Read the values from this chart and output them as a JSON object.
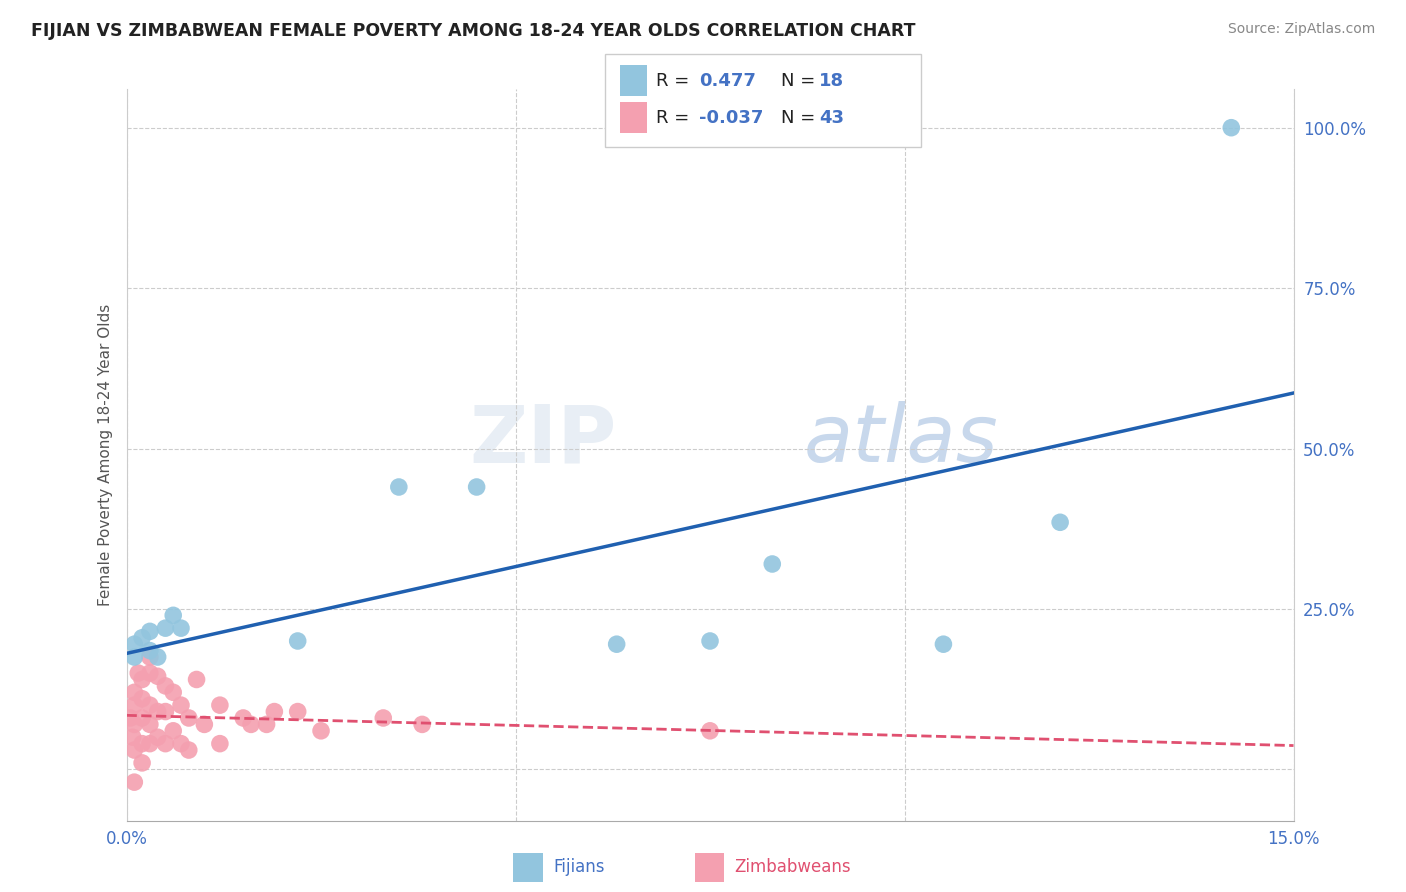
{
  "title": "FIJIAN VS ZIMBABWEAN FEMALE POVERTY AMONG 18-24 YEAR OLDS CORRELATION CHART",
  "source": "Source: ZipAtlas.com",
  "ylabel": "Female Poverty Among 18-24 Year Olds",
  "xmin": 0.0,
  "xmax": 0.15,
  "ymin": -0.08,
  "ymax": 1.06,
  "fijian_color": "#92C5DE",
  "zimbabwean_color": "#F4A0B0",
  "fijian_line_color": "#2060B0",
  "zimbabwean_line_color": "#E05070",
  "R_fijian": 0.477,
  "N_fijian": 18,
  "R_zimbabwean": -0.037,
  "N_zimbabwean": 43,
  "fijian_scatter_x": [
    0.001,
    0.001,
    0.002,
    0.003,
    0.003,
    0.004,
    0.005,
    0.006,
    0.007,
    0.022,
    0.035,
    0.045,
    0.063,
    0.075,
    0.083,
    0.105,
    0.12,
    0.142
  ],
  "fijian_scatter_y": [
    0.175,
    0.195,
    0.205,
    0.185,
    0.215,
    0.175,
    0.22,
    0.24,
    0.22,
    0.2,
    0.44,
    0.44,
    0.195,
    0.2,
    0.32,
    0.195,
    0.385,
    1.0
  ],
  "zimbabwean_scatter_x": [
    0.0005,
    0.0008,
    0.001,
    0.001,
    0.001,
    0.001,
    0.001,
    0.0015,
    0.002,
    0.002,
    0.002,
    0.002,
    0.002,
    0.003,
    0.003,
    0.003,
    0.003,
    0.003,
    0.004,
    0.004,
    0.004,
    0.005,
    0.005,
    0.005,
    0.006,
    0.006,
    0.007,
    0.007,
    0.008,
    0.008,
    0.009,
    0.01,
    0.012,
    0.012,
    0.015,
    0.016,
    0.018,
    0.019,
    0.022,
    0.025,
    0.033,
    0.038,
    0.075
  ],
  "zimbabwean_scatter_y": [
    0.08,
    0.05,
    0.12,
    0.1,
    0.07,
    0.03,
    -0.02,
    0.15,
    0.14,
    0.11,
    0.08,
    0.04,
    0.01,
    0.175,
    0.15,
    0.1,
    0.07,
    0.04,
    0.145,
    0.09,
    0.05,
    0.13,
    0.09,
    0.04,
    0.12,
    0.06,
    0.1,
    0.04,
    0.08,
    0.03,
    0.14,
    0.07,
    0.1,
    0.04,
    0.08,
    0.07,
    0.07,
    0.09,
    0.09,
    0.06,
    0.08,
    0.07,
    0.06
  ],
  "watermark_zip": "ZIP",
  "watermark_atlas": "atlas",
  "ytick_values": [
    0.0,
    0.25,
    0.5,
    0.75,
    1.0
  ],
  "xtick_values": [
    0.0,
    0.05,
    0.1,
    0.15
  ]
}
